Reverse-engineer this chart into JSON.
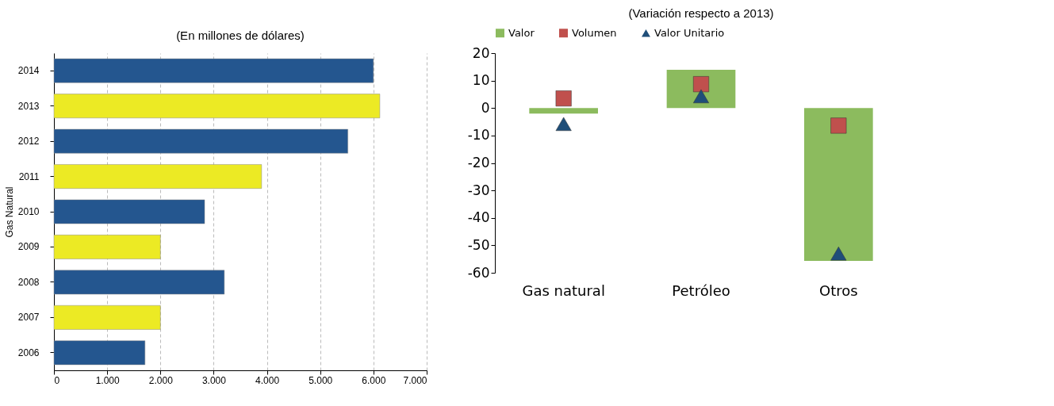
{
  "chart_data": [
    {
      "type": "bar",
      "orientation": "horizontal",
      "title": "(En millones de dólares)",
      "ylabel": "Gas Natural",
      "categories": [
        "2014",
        "2013",
        "2012",
        "2011",
        "2010",
        "2009",
        "2008",
        "2007",
        "2006"
      ],
      "values": [
        6000,
        6120,
        5520,
        3900,
        2830,
        2000,
        3200,
        2000,
        1710
      ],
      "colors": [
        "#24568f",
        "#ecea24",
        "#24568f",
        "#ecea24",
        "#24568f",
        "#ecea24",
        "#24568f",
        "#ecea24",
        "#24568f"
      ],
      "xlim": [
        0,
        7000
      ],
      "xticks": [
        0,
        {
          "value": 1000,
          "label": "1.000"
        },
        {
          "value": 2000,
          "label": "2.000"
        },
        {
          "value": 3000,
          "label": "3.000"
        },
        {
          "value": 4000,
          "label": "4.000"
        },
        {
          "value": 5000,
          "label": "5.000"
        },
        {
          "value": 6000,
          "label": "6.000"
        },
        {
          "value": 7000,
          "label": "7.000"
        }
      ],
      "grid": "x",
      "legend": false
    },
    {
      "type": "bar",
      "title": "(Variación respecto a 2013)",
      "categories": [
        "Gas natural",
        "Petróleo",
        "Otros"
      ],
      "series": [
        {
          "name": "Valor",
          "type": "bar",
          "color": "#8cbb5e",
          "values": [
            -2,
            13.9,
            -55.7
          ]
        },
        {
          "name": "Volumen",
          "type": "scatter",
          "marker": "square",
          "color": "#c0504d",
          "values": [
            3.5,
            8.7,
            -6.4
          ]
        },
        {
          "name": "Valor Unitario",
          "type": "scatter",
          "marker": "triangle",
          "color": "#1f4e79",
          "values": [
            -5.8,
            4.3,
            -53
          ]
        }
      ],
      "ylim": [
        -60,
        20
      ],
      "yticks": [
        -60,
        -50,
        -40,
        -30,
        -20,
        -10,
        0,
        10,
        20
      ],
      "grid": false,
      "legend": "top"
    }
  ]
}
